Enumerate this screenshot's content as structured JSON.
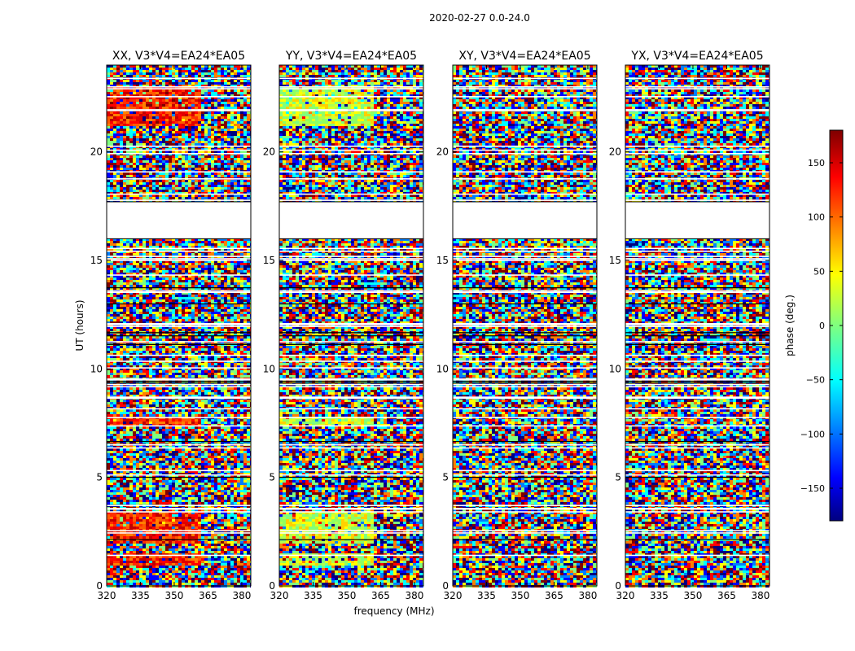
{
  "figure": {
    "suptitle": "2020-02-27 0.0-24.0"
  },
  "chart_data": {
    "type": "heatmap",
    "xlabel": "frequency (MHz)",
    "ylabel": "UT (hours)",
    "xlim": [
      320,
      384
    ],
    "ylim": [
      0,
      24
    ],
    "xticks": [
      "320",
      "335",
      "350",
      "365",
      "380"
    ],
    "yticks": [
      "0",
      "5",
      "10",
      "15",
      "20"
    ],
    "colorbar": {
      "label": "phase (deg.)",
      "range": [
        -180,
        180
      ],
      "ticks": [
        "150",
        "100",
        "50",
        "0",
        "−50",
        "−100",
        "−150"
      ],
      "colormap": "jet"
    },
    "panels": [
      {
        "title": "XX, V3*V4=EA24*EA05",
        "phase_bias": "red"
      },
      {
        "title": "YY, V3*V4=EA24*EA05",
        "phase_bias": "yellow-green"
      },
      {
        "title": "XY, V3*V4=EA24*EA05",
        "phase_bias": "none"
      },
      {
        "title": "YX, V3*V4=EA24*EA05",
        "phase_bias": "none"
      }
    ],
    "flagged_gap_hours": [
      16.0,
      17.7
    ]
  },
  "colors": {
    "jet": [
      "#00007f",
      "#0000ff",
      "#007fff",
      "#00ffff",
      "#7fff7f",
      "#ffff00",
      "#ff7f00",
      "#ff0000",
      "#7f0000"
    ]
  }
}
